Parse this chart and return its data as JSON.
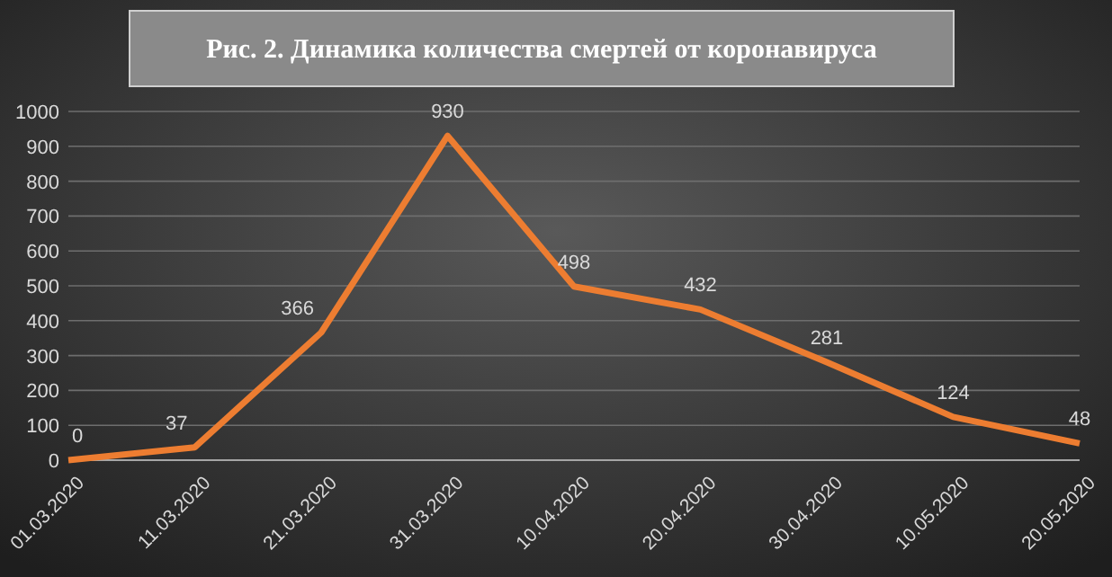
{
  "chart_data": {
    "type": "line",
    "title": "Рис. 2. Динамика количества смертей от коронавируса",
    "categories": [
      "01.03.2020",
      "11.03.2020",
      "21.03.2020",
      "31.03.2020",
      "10.04.2020",
      "20.04.2020",
      "30.04.2020",
      "10.05.2020",
      "20.05.2020"
    ],
    "series": [
      {
        "color": "#ed7d31",
        "values": [
          0,
          37,
          366,
          930,
          498,
          432,
          281,
          124,
          48
        ]
      }
    ],
    "ylim": [
      0,
      1000
    ],
    "yticks": [
      0,
      100,
      200,
      300,
      400,
      500,
      600,
      700,
      800,
      900,
      1000
    ],
    "grid": "y",
    "data_labels": true,
    "marker": "none",
    "line_style": "solid"
  }
}
